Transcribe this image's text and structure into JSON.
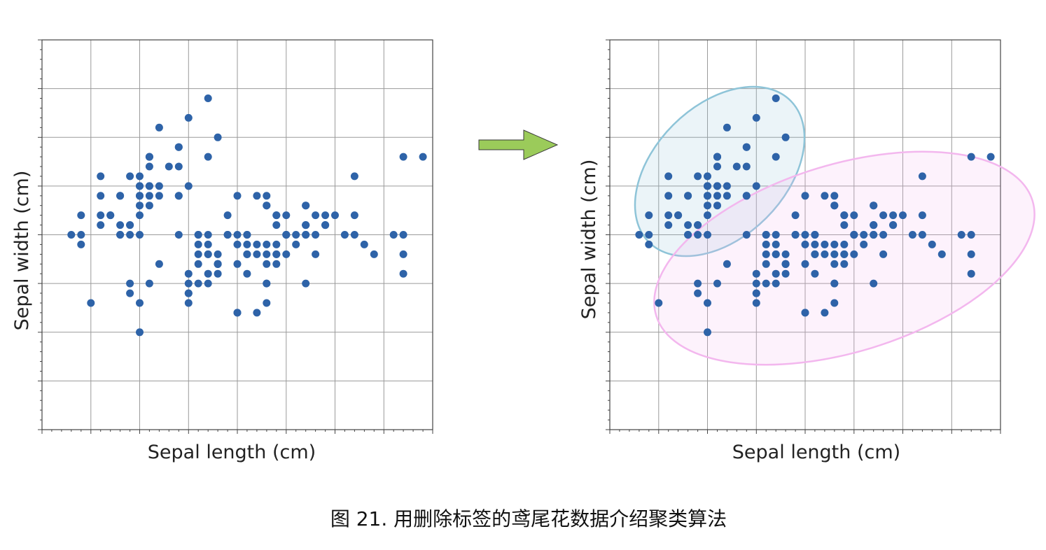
{
  "caption": "图 21. 用删除标签的鸢尾花数据介绍聚类算法",
  "arrow_color": "#9bcb5a",
  "point_color": "#2e63a8",
  "cluster_colors": [
    "#8ec4d8",
    "#f3b7ee"
  ],
  "chart_data": [
    {
      "type": "scatter",
      "xlabel": "Sepal length (cm)",
      "ylabel": "Sepal width (cm)",
      "xlim": [
        4.0,
        8.0
      ],
      "ylim": [
        1.0,
        5.0
      ],
      "grid": true,
      "series": [
        {
          "x": [
            5.1,
            4.9,
            4.7,
            4.6,
            5.0,
            5.4,
            4.6,
            5.0,
            4.4,
            4.9,
            5.4,
            4.8,
            4.8,
            4.3,
            5.8,
            5.7,
            5.4,
            5.1,
            5.7,
            5.1,
            5.4,
            5.1,
            4.6,
            5.1,
            4.8,
            5.0,
            5.0,
            5.2,
            5.2,
            4.7,
            4.8,
            5.4,
            5.2,
            5.5,
            4.9,
            5.0,
            5.5,
            4.9,
            4.4,
            5.1,
            5.0,
            4.5,
            4.4,
            5.0,
            5.1,
            4.8,
            5.1,
            4.6,
            5.3,
            5.0,
            7.0,
            6.4,
            6.9,
            5.5,
            6.5,
            5.7,
            6.3,
            4.9,
            6.6,
            5.2,
            5.0,
            5.9,
            6.0,
            6.1,
            5.6,
            6.7,
            5.6,
            5.8,
            6.2,
            5.6,
            5.9,
            6.1,
            6.3,
            6.1,
            6.4,
            6.6,
            6.8,
            6.7,
            6.0,
            5.7,
            5.5,
            5.5,
            5.8,
            6.0,
            5.4,
            6.0,
            6.7,
            6.3,
            5.6,
            5.5,
            5.5,
            6.1,
            5.8,
            5.0,
            5.6,
            5.7,
            5.7,
            6.2,
            5.1,
            5.7,
            6.3,
            5.8,
            7.1,
            6.3,
            6.5,
            7.6,
            4.9,
            7.3,
            6.7,
            7.2,
            6.5,
            6.4,
            6.8,
            5.7,
            5.8,
            6.4,
            6.5,
            7.7,
            7.7,
            6.0,
            6.9,
            5.6,
            7.7,
            6.3,
            6.7,
            7.2,
            6.2,
            6.1,
            6.4,
            7.2,
            7.4,
            7.9,
            6.4,
            6.3,
            6.1,
            7.7,
            6.3,
            6.4,
            6.0,
            6.9,
            6.7,
            6.9,
            5.8,
            6.8,
            6.7,
            6.7,
            6.3,
            6.5,
            6.2,
            5.9
          ],
          "y": [
            3.5,
            3.0,
            3.2,
            3.1,
            3.6,
            3.9,
            3.4,
            3.4,
            2.9,
            3.1,
            3.7,
            3.4,
            3.0,
            3.0,
            4.0,
            4.4,
            3.9,
            3.5,
            3.8,
            3.8,
            3.4,
            3.7,
            3.6,
            3.3,
            3.4,
            3.0,
            3.4,
            3.5,
            3.4,
            3.2,
            3.1,
            3.4,
            4.1,
            4.2,
            3.1,
            3.2,
            3.5,
            3.6,
            3.0,
            3.4,
            3.5,
            2.3,
            3.2,
            3.5,
            3.8,
            3.0,
            3.8,
            3.2,
            3.7,
            3.3,
            3.2,
            3.2,
            3.1,
            2.3,
            2.8,
            2.8,
            3.3,
            2.4,
            2.9,
            2.7,
            2.0,
            3.0,
            2.2,
            2.9,
            2.9,
            3.1,
            3.0,
            2.7,
            2.2,
            2.5,
            3.2,
            2.8,
            2.5,
            2.8,
            2.9,
            3.0,
            2.8,
            3.0,
            2.9,
            2.6,
            2.4,
            2.4,
            2.7,
            2.7,
            3.0,
            3.4,
            3.1,
            2.3,
            3.0,
            2.5,
            2.6,
            3.0,
            2.6,
            2.3,
            2.7,
            3.0,
            2.9,
            2.9,
            2.5,
            2.8,
            3.3,
            2.7,
            3.0,
            2.9,
            3.0,
            3.0,
            2.5,
            2.9,
            2.5,
            3.6,
            3.2,
            2.7,
            3.0,
            2.5,
            2.8,
            3.2,
            3.0,
            3.8,
            2.6,
            2.2,
            3.2,
            2.8,
            2.8,
            2.7,
            3.3,
            3.2,
            2.8,
            3.0,
            2.8,
            3.0,
            2.8,
            3.8,
            2.8,
            2.8,
            2.6,
            3.0,
            3.4,
            3.1,
            3.0,
            3.1,
            3.1,
            3.1,
            2.7,
            3.2,
            3.3,
            3.0,
            2.5,
            3.0,
            3.4,
            3.0
          ]
        }
      ]
    },
    {
      "type": "scatter",
      "xlabel": "Sepal length (cm)",
      "ylabel": "Sepal width (cm)",
      "xlim": [
        4.0,
        8.0
      ],
      "ylim": [
        1.0,
        5.0
      ],
      "grid": true,
      "series": [
        {
          "x": [
            5.1,
            4.9,
            4.7,
            4.6,
            5.0,
            5.4,
            4.6,
            5.0,
            4.4,
            4.9,
            5.4,
            4.8,
            4.8,
            4.3,
            5.8,
            5.7,
            5.4,
            5.1,
            5.7,
            5.1,
            5.4,
            5.1,
            4.6,
            5.1,
            4.8,
            5.0,
            5.0,
            5.2,
            5.2,
            4.7,
            4.8,
            5.4,
            5.2,
            5.5,
            4.9,
            5.0,
            5.5,
            4.9,
            4.4,
            5.1,
            5.0,
            4.5,
            4.4,
            5.0,
            5.1,
            4.8,
            5.1,
            4.6,
            5.3,
            5.0,
            7.0,
            6.4,
            6.9,
            5.5,
            6.5,
            5.7,
            6.3,
            4.9,
            6.6,
            5.2,
            5.0,
            5.9,
            6.0,
            6.1,
            5.6,
            6.7,
            5.6,
            5.8,
            6.2,
            5.6,
            5.9,
            6.1,
            6.3,
            6.1,
            6.4,
            6.6,
            6.8,
            6.7,
            6.0,
            5.7,
            5.5,
            5.5,
            5.8,
            6.0,
            5.4,
            6.0,
            6.7,
            6.3,
            5.6,
            5.5,
            5.5,
            6.1,
            5.8,
            5.0,
            5.6,
            5.7,
            5.7,
            6.2,
            5.1,
            5.7,
            6.3,
            5.8,
            7.1,
            6.3,
            6.5,
            7.6,
            4.9,
            7.3,
            6.7,
            7.2,
            6.5,
            6.4,
            6.8,
            5.7,
            5.8,
            6.4,
            6.5,
            7.7,
            7.7,
            6.0,
            6.9,
            5.6,
            7.7,
            6.3,
            6.7,
            7.2,
            6.2,
            6.1,
            6.4,
            7.2,
            7.4,
            7.9,
            6.4,
            6.3,
            6.1,
            7.7,
            6.3,
            6.4,
            6.0,
            6.9,
            6.7,
            6.9,
            5.8,
            6.8,
            6.7,
            6.7,
            6.3,
            6.5,
            6.2,
            5.9
          ],
          "y": [
            3.5,
            3.0,
            3.2,
            3.1,
            3.6,
            3.9,
            3.4,
            3.4,
            2.9,
            3.1,
            3.7,
            3.4,
            3.0,
            3.0,
            4.0,
            4.4,
            3.9,
            3.5,
            3.8,
            3.8,
            3.4,
            3.7,
            3.6,
            3.3,
            3.4,
            3.0,
            3.4,
            3.5,
            3.4,
            3.2,
            3.1,
            3.4,
            4.1,
            4.2,
            3.1,
            3.2,
            3.5,
            3.6,
            3.0,
            3.4,
            3.5,
            2.3,
            3.2,
            3.5,
            3.8,
            3.0,
            3.8,
            3.2,
            3.7,
            3.3,
            3.2,
            3.2,
            3.1,
            2.3,
            2.8,
            2.8,
            3.3,
            2.4,
            2.9,
            2.7,
            2.0,
            3.0,
            2.2,
            2.9,
            2.9,
            3.1,
            3.0,
            2.7,
            2.2,
            2.5,
            3.2,
            2.8,
            2.5,
            2.8,
            2.9,
            3.0,
            2.8,
            3.0,
            2.9,
            2.6,
            2.4,
            2.4,
            2.7,
            2.7,
            3.0,
            3.4,
            3.1,
            2.3,
            3.0,
            2.5,
            2.6,
            3.0,
            2.6,
            2.3,
            2.7,
            3.0,
            2.9,
            2.9,
            2.5,
            2.8,
            3.3,
            2.7,
            3.0,
            2.9,
            3.0,
            3.0,
            2.5,
            2.9,
            2.5,
            3.6,
            3.2,
            2.7,
            3.0,
            2.5,
            2.8,
            3.2,
            3.0,
            3.8,
            2.6,
            2.2,
            3.2,
            2.8,
            2.8,
            2.7,
            3.3,
            3.2,
            2.8,
            3.0,
            2.8,
            3.0,
            2.8,
            3.8,
            2.8,
            2.8,
            2.6,
            3.0,
            3.4,
            3.1,
            3.0,
            3.1,
            3.1,
            3.1,
            2.7,
            3.2,
            3.3,
            3.0,
            2.5,
            3.0,
            3.4,
            3.0
          ]
        }
      ]
    }
  ]
}
